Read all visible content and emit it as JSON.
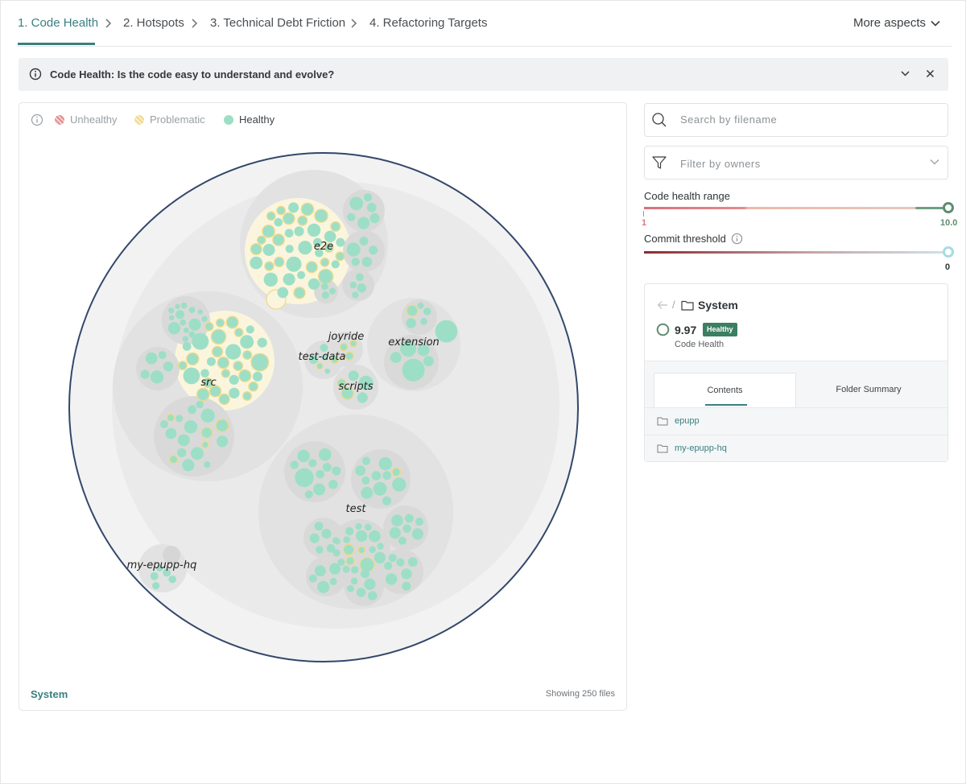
{
  "steps": [
    {
      "label": "1. Code Health"
    },
    {
      "label": "2. Hotspots"
    },
    {
      "label": "3. Technical Debt Friction"
    },
    {
      "label": "4. Refactoring Targets"
    }
  ],
  "more_aspects": "More aspects",
  "banner": {
    "text": "Code Health: Is the code easy to understand and evolve?"
  },
  "legend": {
    "unhealthy": "Unhealthy",
    "problematic": "Problematic",
    "healthy": "Healthy",
    "colors": {
      "unhealthy": "#e08a8a",
      "problematic": "#efd98a",
      "healthy": "#9ddfc6"
    }
  },
  "map": {
    "labels": {
      "e2e": "e2e",
      "src": "src",
      "joyride": "joyride",
      "test_data": "test-data",
      "extension": "extension",
      "scripts": "scripts",
      "test": "test",
      "my_epupp_hq": "my-epupp-hq"
    },
    "footer_left": "System",
    "footer_right": "Showing 250 files"
  },
  "search": {
    "placeholder": "Search by filename",
    "value": ""
  },
  "owners_filter": {
    "placeholder": "Filter by owners"
  },
  "code_health_range": {
    "label": "Code health range",
    "min": "1",
    "max": "10.0",
    "value": 10.0
  },
  "commit_threshold": {
    "label": "Commit threshold",
    "value": "0"
  },
  "selection": {
    "name": "System",
    "score": "9.97",
    "badge": "Healthy",
    "score_label": "Code Health"
  },
  "tabs": {
    "contents": "Contents",
    "folder_summary": "Folder Summary"
  },
  "contents": [
    {
      "name": "epupp"
    },
    {
      "name": "my-epupp-hq"
    }
  ],
  "colors": {
    "accent": "#3b7f80",
    "healthy_badge": "#3b7f63"
  }
}
